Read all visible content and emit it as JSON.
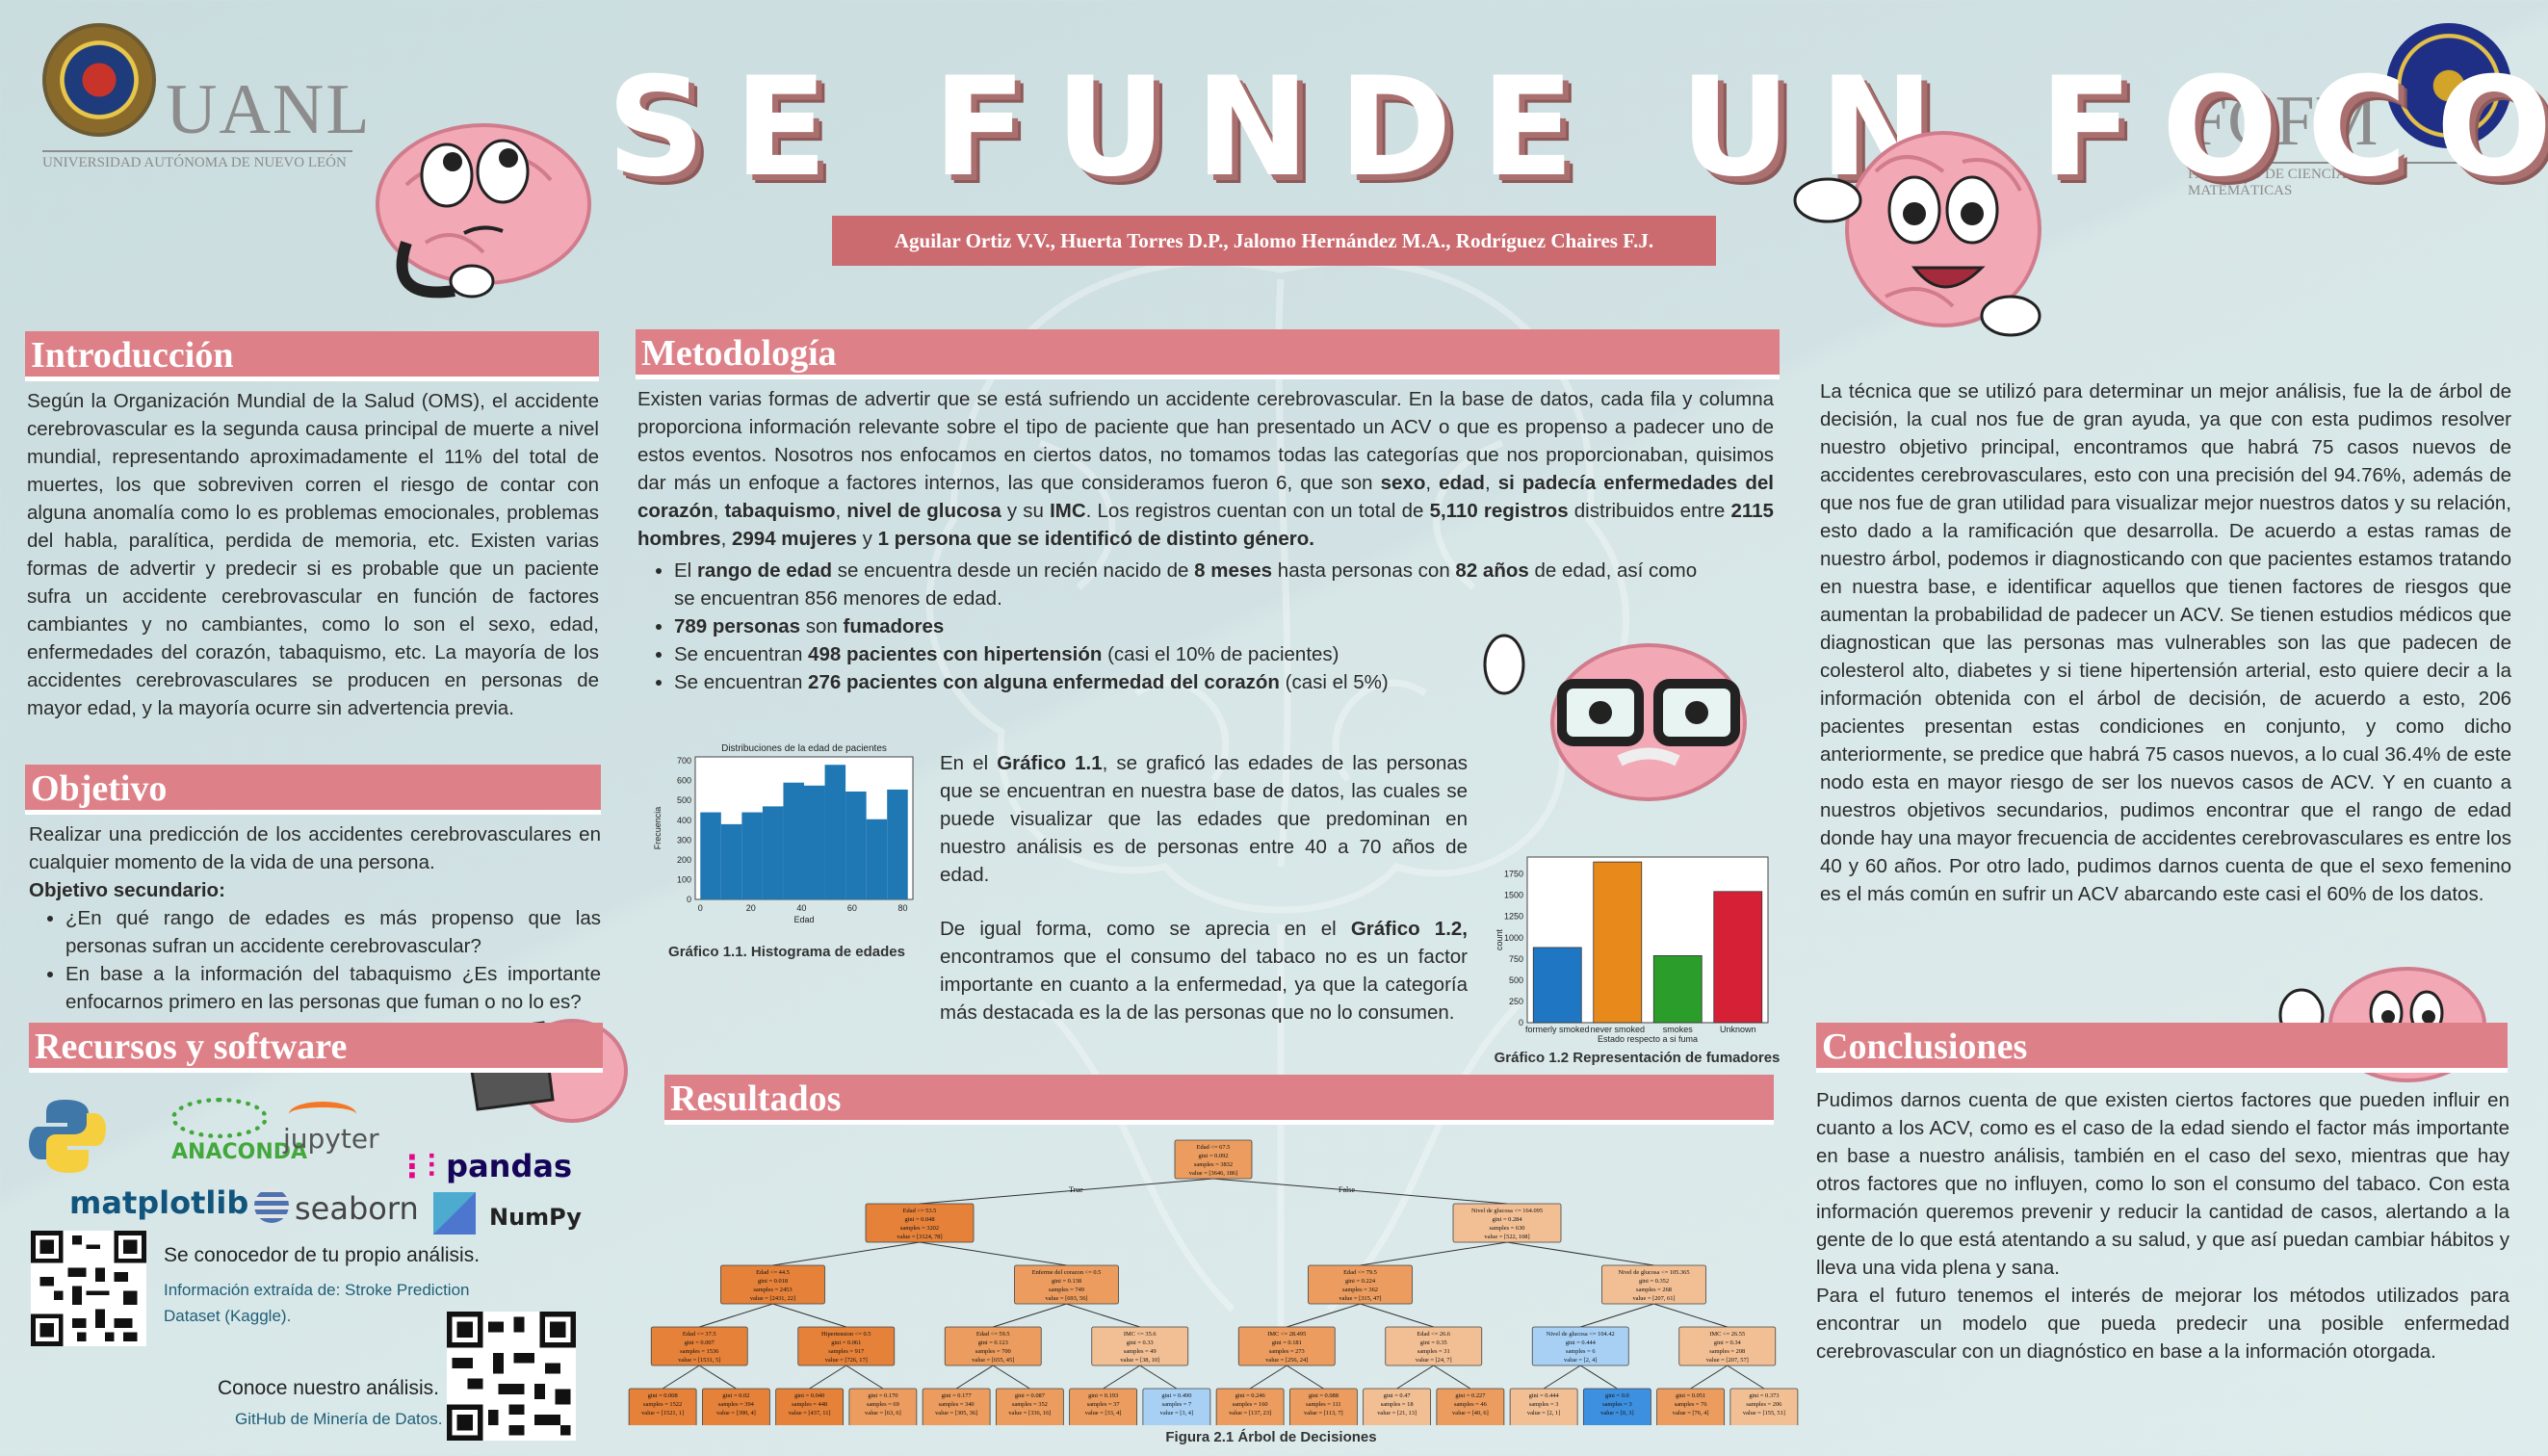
{
  "header": {
    "title": "SE FUNDE UN FOCO",
    "authors": "Aguilar Ortiz V.V., Huerta Torres D.P., Jalomo Hernández M.A., Rodríguez Chaires F.J.",
    "left_logo": {
      "name": "UANL",
      "subtitle": "UNIVERSIDAD AUTÓNOMA DE NUEVO LEÓN"
    },
    "right_logo": {
      "name": "FCFM",
      "subtitle": "FACULTAD DE CIENCIAS FÍSICO MATEMÁTICAS"
    }
  },
  "introduccion": {
    "heading": "Introducción",
    "body": "Según la Organización Mundial de la Salud (OMS), el accidente cerebrovascular es la segunda causa principal de muerte a nivel mundial, representando aproximadamente el 11% del total de muertes, los que sobreviven corren el riesgo de contar con alguna anomalía como lo es problemas emocionales, problemas del habla, paralítica, perdida de memoria, etc. Existen varias formas de advertir y predecir si es probable que un paciente sufra un accidente cerebrovascular en función de factores cambiantes y no cambiantes, como lo son el sexo, edad, enfermedades del corazón, tabaquismo, etc. La mayoría de los accidentes cerebrovasculares se producen en personas de mayor edad, y la mayoría ocurre sin advertencia previa."
  },
  "objetivo": {
    "heading": "Objetivo",
    "body": "Realizar una predicción de los accidentes cerebrovasculares en cualquier momento de la vida de una persona.",
    "secondary_label": "Objetivo secundario:",
    "secondary": [
      "¿En qué rango de edades es más propenso que las personas sufran un accidente cerebrovascular?",
      "En base a la información del tabaquismo ¿Es importante enfocarnos primero en las personas que fuman o no lo es?"
    ]
  },
  "recursos": {
    "heading": "Recursos y software",
    "logos": [
      "python",
      "ANACONDA",
      "jupyter",
      "pandas",
      "matplotlib",
      "seaborn",
      "NumPy"
    ],
    "qr1_title": "Se conocedor de tu propio análisis.",
    "qr1_sub": "Información extraída de: Stroke Prediction Dataset (Kaggle).",
    "qr2_title": "Conoce nuestro análisis.",
    "qr2_sub": "GitHub de Minería de Datos."
  },
  "metodologia": {
    "heading": "Metodología",
    "p1_a": "Existen varias formas de advertir que se está sufriendo un accidente cerebrovascular. En la base de datos, cada fila y columna proporciona información relevante sobre el tipo de paciente que han presentado un ACV o que es propenso a padecer uno de estos eventos. Nosotros nos enfocamos en ciertos datos, no tomamos todas las categorías que nos proporcionaban, quisimos dar más un enfoque a factores internos, las que consideramos fueron 6, que son ",
    "p1_b1": "sexo",
    "p1_c1": ", ",
    "p1_b2": "edad",
    "p1_c2": ", ",
    "p1_b3": "si padecía enfermedades del corazón",
    "p1_c3": ", ",
    "p1_b4": "tabaquismo",
    "p1_c4": ", ",
    "p1_b5": "nivel de glucosa",
    "p1_c5": " y su ",
    "p1_b6": "IMC",
    "p1_c6": ". Los registros cuentan con un total de ",
    "p1_b7": "5,110 registros",
    "p1_c7": " distribuidos entre ",
    "p1_b8": "2115 hombres",
    "p1_c8": ", ",
    "p1_b9": "2994 mujeres",
    "p1_c9": " y ",
    "p1_b10": "1 persona que se identificó de distinto género.",
    "bullets": [
      {
        "a": "El ",
        "b": "rango de edad",
        "c": " se encuentra desde un recién nacido de ",
        "d": "8 meses",
        "e": " hasta personas con ",
        "f": "82 años",
        "g": " de edad, así como se encuentran 856 menores de edad."
      },
      {
        "a": "",
        "b": "789 personas",
        "c": " son ",
        "d": "fumadores",
        "e": "",
        "f": "",
        "g": ""
      },
      {
        "a": "Se encuentran ",
        "b": "498 pacientes con hipertensión",
        "c": " (casi el 10% de pacientes)",
        "d": "",
        "e": "",
        "f": "",
        "g": ""
      },
      {
        "a": "Se encuentran ",
        "b": "276 pacientes con alguna enfermedad del corazón",
        "c": " (casi el 5%)",
        "d": "",
        "e": "",
        "f": "",
        "g": ""
      }
    ],
    "graf11_text_a": "En el ",
    "graf11_text_b": "Gráfico 1.1",
    "graf11_text_c": ", se graficó las edades de las personas que se encuentran en nuestra base de datos, las cuales se puede visualizar que las edades que predominan en nuestro análisis es de personas entre 40 a 70 años de edad.",
    "graf12_text_a": "De igual forma, como se aprecia en  el ",
    "graf12_text_b": "Gráfico 1.2,",
    "graf12_text_c": " encontramos que el consumo del tabaco no es un factor importante en cuanto a la enfermedad, ya que la categoría más destacada es la de las personas que no lo consumen.",
    "caption1": "Gráfico 1.1. Histograma de edades",
    "caption2": "Gráfico 1.2 Representación de fumadores"
  },
  "chart_data": [
    {
      "type": "bar",
      "title": "Distribuciones de la edad de pacientes",
      "xlabel": "Edad",
      "ylabel": "Frecuencia",
      "xticks": [
        "0",
        "20",
        "40",
        "60",
        "80"
      ],
      "yticks": [
        "0",
        "100",
        "200",
        "300",
        "400",
        "500",
        "600",
        "700"
      ],
      "ylim": [
        0,
        720
      ],
      "xlim": [
        -2,
        84
      ],
      "bin_edges": [
        0,
        8.2,
        16.4,
        24.6,
        32.8,
        41,
        49.2,
        57.4,
        65.6,
        73.8,
        82
      ],
      "values": [
        440,
        380,
        440,
        470,
        590,
        575,
        680,
        545,
        405,
        555
      ],
      "color": "#1f77b4"
    },
    {
      "type": "bar",
      "title": "",
      "xlabel": "Estado respecto a si fuma",
      "ylabel": "count",
      "categories": [
        "formerly smoked",
        "never smoked",
        "smokes",
        "Unknown"
      ],
      "values": [
        885,
        1892,
        789,
        1544
      ],
      "colors": [
        "#1f77c4",
        "#e8891c",
        "#2a9d2a",
        "#d62036"
      ],
      "yticks": [
        "0",
        "250",
        "500",
        "750",
        "1000",
        "1250",
        "1500",
        "1750"
      ],
      "ylim": [
        0,
        1950
      ]
    }
  ],
  "resultados": {
    "heading": "Resultados",
    "caption": "Figura 2.1 Árbol de Decisiones",
    "tree_root": "Edad <= 67.5\ngini = 0.092\nsamples = 3832\nvalue = [3646, 186]",
    "tree_true": "True",
    "tree_false": "False",
    "tree_l1": [
      "Edad <= 53.5\ngini = 0.048\nsamples = 3202\nvalue = [3124, 78]",
      "Nivel de glucosa <= 164.095\ngini = 0.284\nsamples = 630\nvalue = [522, 108]"
    ],
    "tree_l2": [
      "Edad <= 44.5\ngini = 0.018\nsamples = 2453\nvalue = [2431, 22]",
      "Enferme del corazon <= 0.5\ngini = 0.138\nsamples = 749\nvalue = [693, 56]",
      "Edad <= 79.5\ngini = 0.224\nsamples = 362\nvalue = [315, 47]",
      "Nivel de glucosa <= 105.365\ngini = 0.352\nsamples = 268\nvalue = [207, 61]"
    ],
    "tree_l3": [
      "Edad <= 37.5\ngini = 0.007\nsamples = 1536\nvalue = [1531, 5]",
      "Hipertension <= 0.5\ngini = 0.061\nsamples = 917\nvalue = [726, 17]",
      "Edad <= 59.5\ngini = 0.123\nsamples = 700\nvalue = [655, 45]",
      "IMC <= 35.6\ngini = 0.33\nsamples = 49\nvalue = [38, 10]",
      "IMC <= 28.495\ngini = 0.181\nsamples = 273\nvalue = [256, 24]",
      "Edad <= 26.6\ngini = 0.35\nsamples = 31\nvalue = [24, 7]",
      "Nivel de glucosa <= 104.42\ngini = 0.444\nsamples = 6\nvalue = [2, 4]",
      "IMC <= 26.55\ngini = 0.34\nsamples = 208\nvalue = [207, 57]"
    ],
    "tree_leaves": [
      "gini = 0.008\nsamples = 1522\nvalue = [1521, 1]",
      "gini = 0.02\nsamples = 394\nvalue = [390, 4]",
      "gini = 0.040\nsamples = 448\nvalue = [437, 11]",
      "gini = 0.170\nsamples = 69\nvalue = [63, 6]",
      "gini = 0.177\nsamples = 340\nvalue = [305, 36]",
      "gini = 0.087\nsamples = 352\nvalue = [336, 16]",
      "gini = 0.193\nsamples = 37\nvalue = [33, 4]",
      "gini = 0.490\nsamples = 7\nvalue = [3, 4]",
      "gini = 0.246\nsamples = 160\nvalue = [137, 23]",
      "gini = 0.088\nsamples = 111\nvalue = [113, 7]",
      "gini = 0.47\nsamples = 18\nvalue = [21, 13]",
      "gini = 0.227\nsamples = 46\nvalue = [40, 6]",
      "gini = 0.444\nsamples = 3\nvalue = [2, 1]",
      "gini = 0.0\nsamples = 3\nvalue = [0, 3]",
      "gini = 0.051\nsamples = 76\nvalue = [76, 4]",
      "gini = 0.373\nsamples = 206\nvalue = [155, 51]"
    ]
  },
  "analisis": {
    "body": "La técnica que se utilizó para determinar un mejor análisis, fue la de árbol de decisión, la cual nos fue de gran ayuda, ya que con esta pudimos resolver nuestro objetivo principal, encontramos que habrá 75 casos nuevos de accidentes cerebrovasculares, esto con una precisión del 94.76%, además de que nos fue de gran utilidad para visualizar mejor nuestros datos y su relación, esto dado a la ramificación que desarrolla. De acuerdo a estas ramas de nuestro árbol, podemos ir diagnosticando con que pacientes estamos tratando en nuestra base, e identificar aquellos que tienen factores de riesgos que aumentan la probabilidad de padecer un ACV. Se tienen estudios médicos que diagnostican que las personas mas vulnerables son las que padecen de colesterol alto, diabetes y si tiene hipertensión arterial, esto quiere decir a la información obtenida con el árbol de decisión, de acuerdo a esto, 206 pacientes presentan estas condiciones en conjunto, y como dicho anteriormente, se predice que habrá 75 casos nuevos, a lo cual 36.4% de este nodo esta en mayor riesgo de ser los nuevos casos de ACV. Y en cuanto a nuestros objetivos secundarios, pudimos encontrar que el rango de edad donde hay una mayor frecuencia de accidentes cerebrovasculares es entre los 40 y 60 años. Por otro lado, pudimos darnos cuenta de que el sexo femenino es el más común en sufrir un ACV abarcando este casi el 60% de los datos."
  },
  "conclusiones": {
    "heading": "Conclusiones",
    "p1": "Pudimos darnos cuenta de que existen ciertos factores que pueden influir en cuanto a los ACV, como es el caso de la edad siendo el factor más importante en base a nuestro análisis, también en el caso del sexo, mientras que hay otros factores que no influyen, como lo son el consumo del tabaco. Con esta información queremos prevenir y reducir la cantidad de casos, alertando a la gente de lo que está atentando a su salud, y que así puedan cambiar hábitos y lleva una vida plena y sana.",
    "p2": "Para el futuro tenemos el interés de mejorar los métodos utilizados para encontrar un modelo que pueda predecir una posible enfermedad cerebrovascular con un diagnóstico en base a la información otorgada."
  },
  "colors": {
    "accent": "#de8088",
    "title_shadow": "#a9706f",
    "background": "#cfe0e2"
  }
}
